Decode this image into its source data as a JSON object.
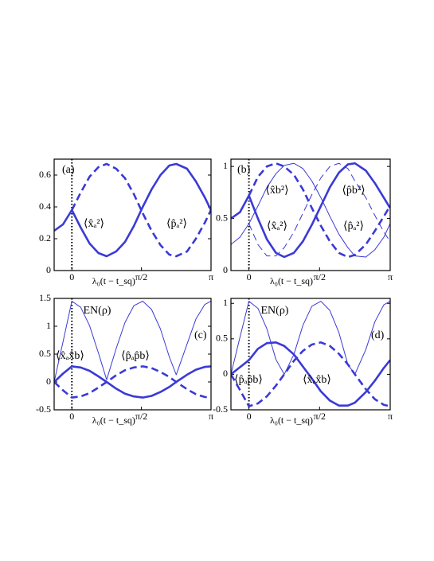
{
  "chart_data": [
    {
      "type": "line",
      "panel_label": "(a)",
      "xlabel": "λ₀(t − t_sq)",
      "x": [
        -0.4,
        -0.2,
        0,
        0.2,
        0.4,
        0.6,
        0.785,
        1.0,
        1.2,
        1.4,
        1.6,
        1.8,
        2.0,
        2.2,
        2.356,
        2.6,
        2.8,
        3.0,
        3.14
      ],
      "xlim": [
        -0.4,
        3.1416
      ],
      "xticks": [
        0,
        {
          "value": 1.5708,
          "label": "π/2"
        },
        {
          "value": 3.1416,
          "label": "π"
        }
      ],
      "ylim": [
        0,
        0.7
      ],
      "yticks": [
        0,
        0.2,
        0.4,
        0.6
      ],
      "annotations": [
        "⟨x̂ₐ²⟩",
        "⟨p̂ₐ²⟩"
      ],
      "series": [
        {
          "color": "#3a3ad6",
          "linewidth": 2.6,
          "dashed": false,
          "values": [
            0.25,
            0.29,
            0.38,
            0.27,
            0.17,
            0.11,
            0.09,
            0.12,
            0.18,
            0.28,
            0.4,
            0.51,
            0.6,
            0.66,
            0.67,
            0.64,
            0.56,
            0.46,
            0.38
          ]
        },
        {
          "color": "#3a3ad6",
          "linewidth": 2.6,
          "dashed": true,
          "values": [
            null,
            null,
            0.38,
            0.49,
            0.59,
            0.65,
            0.67,
            0.64,
            0.58,
            0.48,
            0.36,
            0.25,
            0.16,
            0.1,
            0.09,
            0.12,
            0.2,
            0.3,
            0.38
          ]
        }
      ]
    },
    {
      "type": "line",
      "panel_label": "(b)",
      "xlabel": "λ₀(t − t_sq)",
      "x": [
        -0.4,
        -0.2,
        0,
        0.2,
        0.4,
        0.6,
        0.785,
        1.0,
        1.2,
        1.4,
        1.6,
        1.8,
        2.0,
        2.2,
        2.356,
        2.6,
        2.8,
        3.0,
        3.14
      ],
      "xlim": [
        -0.4,
        3.1416
      ],
      "xticks": [
        0,
        {
          "value": 1.5708,
          "label": "π/2"
        },
        {
          "value": 3.1416,
          "label": "π"
        }
      ],
      "ylim": [
        0,
        1.07
      ],
      "yticks": [
        0,
        0.5,
        1
      ],
      "annotations": [
        "⟨x̂b²⟩",
        "⟨p̂b²⟩",
        "⟨x̂ₐ²⟩",
        "⟨p̂ₐ²⟩"
      ],
      "series": [
        {
          "color": "#3a3ad6",
          "linewidth": 2.6,
          "dashed": false,
          "values": [
            0.5,
            0.56,
            0.72,
            0.5,
            0.3,
            0.17,
            0.13,
            0.17,
            0.28,
            0.44,
            0.62,
            0.8,
            0.94,
            1.02,
            1.03,
            0.96,
            0.84,
            0.7,
            0.6
          ]
        },
        {
          "color": "#3a3ad6",
          "linewidth": 2.6,
          "dashed": true,
          "values": [
            null,
            null,
            0.72,
            0.9,
            1.0,
            1.03,
            1.0,
            0.92,
            0.78,
            0.6,
            0.43,
            0.28,
            0.17,
            0.13,
            0.15,
            0.25,
            0.38,
            0.52,
            0.62
          ]
        },
        {
          "color": "#3a3ad6",
          "linewidth": 1,
          "dashed": false,
          "values": [
            0.25,
            0.32,
            0.45,
            0.62,
            0.8,
            0.93,
            1.01,
            1.03,
            0.98,
            0.86,
            0.7,
            0.52,
            0.35,
            0.22,
            0.14,
            0.13,
            0.2,
            0.32,
            0.45
          ]
        },
        {
          "color": "#3a3ad6",
          "linewidth": 1,
          "dashed": true,
          "values": [
            null,
            null,
            0.45,
            0.25,
            0.14,
            0.14,
            0.22,
            0.37,
            0.55,
            0.73,
            0.89,
            1.0,
            1.03,
            0.98,
            0.86,
            0.7,
            0.53,
            0.37,
            0.28
          ]
        }
      ]
    },
    {
      "type": "line",
      "panel_label": "(c)",
      "xlabel": "λ₀(t − t_sq)",
      "x": [
        -0.4,
        -0.2,
        0,
        0.2,
        0.4,
        0.6,
        0.785,
        1.0,
        1.2,
        1.4,
        1.6,
        1.8,
        2.0,
        2.2,
        2.356,
        2.6,
        2.8,
        3.0,
        3.14
      ],
      "xlim": [
        -0.4,
        3.1416
      ],
      "xticks": [
        0,
        {
          "value": 1.5708,
          "label": "π/2"
        },
        {
          "value": 3.1416,
          "label": "π"
        }
      ],
      "ylim": [
        -0.5,
        1.5
      ],
      "yticks": [
        -0.5,
        0,
        0.5,
        1,
        1.5
      ],
      "annotations": [
        "EN(ρ)",
        "⟨x̂ₐx̂b⟩",
        "⟨p̂ₐp̂b⟩"
      ],
      "series": [
        {
          "color": "#3a3ad6",
          "linewidth": 1,
          "dashed": false,
          "values": [
            0,
            0.72,
            1.45,
            1.34,
            1.01,
            0.52,
            0.04,
            0.6,
            1.07,
            1.37,
            1.45,
            1.3,
            0.95,
            0.45,
            0.13,
            0.68,
            1.13,
            1.39,
            1.45
          ]
        },
        {
          "color": "#3a3ad6",
          "linewidth": 2.6,
          "dashed": false,
          "values": [
            0,
            0.15,
            0.28,
            0.26,
            0.2,
            0.1,
            0,
            -0.12,
            -0.21,
            -0.26,
            -0.28,
            -0.25,
            -0.18,
            -0.09,
            0,
            0.13,
            0.22,
            0.27,
            0.28
          ]
        },
        {
          "color": "#3a3ad6",
          "linewidth": 2.6,
          "dashed": true,
          "values": [
            0,
            -0.15,
            -0.28,
            -0.26,
            -0.2,
            -0.1,
            0,
            0.12,
            0.21,
            0.26,
            0.28,
            0.25,
            0.18,
            0.09,
            0,
            -0.13,
            -0.22,
            -0.27,
            -0.28
          ]
        }
      ]
    },
    {
      "type": "line",
      "panel_label": "(d)",
      "xlabel": "λ₀(t − t_sq)",
      "x": [
        -0.4,
        -0.2,
        0,
        0.2,
        0.4,
        0.6,
        0.785,
        1.0,
        1.2,
        1.4,
        1.6,
        1.8,
        2.0,
        2.2,
        2.356,
        2.6,
        2.8,
        3.0,
        3.14
      ],
      "xlim": [
        -0.4,
        3.1416
      ],
      "xticks": [
        0,
        {
          "value": 1.5708,
          "label": "π/2"
        },
        {
          "value": 3.1416,
          "label": "π"
        }
      ],
      "ylim": [
        -0.5,
        1.07
      ],
      "yticks": [
        -0.5,
        0,
        0.5,
        1
      ],
      "annotations": [
        "EN(ρ)",
        "⟨p̂ₐp̂b⟩",
        "⟨x̂ₐx̂b⟩"
      ],
      "series": [
        {
          "color": "#3a3ad6",
          "linewidth": 1,
          "dashed": false,
          "values": [
            0,
            0.52,
            1.03,
            0.93,
            0.64,
            0.21,
            0,
            0.28,
            0.69,
            0.96,
            1.03,
            0.9,
            0.59,
            0.14,
            0,
            0.35,
            0.74,
            0.98,
            1.03
          ]
        },
        {
          "color": "#3a3ad6",
          "linewidth": 2.6,
          "dashed": false,
          "values": [
            0,
            0.1,
            0.2,
            0.36,
            0.44,
            0.45,
            0.4,
            0.28,
            0.11,
            -0.06,
            -0.24,
            -0.37,
            -0.44,
            -0.44,
            -0.4,
            -0.25,
            -0.09,
            0.09,
            0.2
          ]
        },
        {
          "color": "#3a3ad6",
          "linewidth": 2.6,
          "dashed": true,
          "values": [
            0,
            -0.22,
            -0.45,
            -0.41,
            -0.31,
            -0.16,
            0,
            0.19,
            0.33,
            0.42,
            0.45,
            0.4,
            0.29,
            0.14,
            0,
            -0.21,
            -0.35,
            -0.43,
            -0.45
          ]
        }
      ]
    }
  ]
}
